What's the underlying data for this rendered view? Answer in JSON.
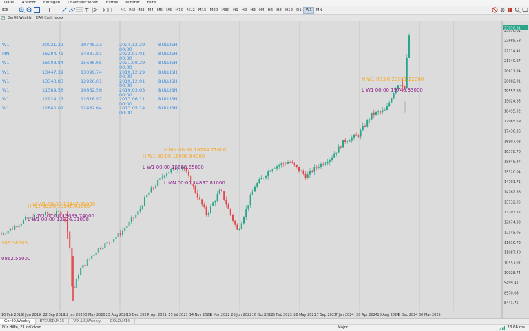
{
  "menu": [
    "Datei",
    "Ansicht",
    "Einfügen",
    "Chartfunktionen",
    "Extras",
    "Fenster",
    "Hilfe"
  ],
  "toolbar": {
    "ide_label": "IDE",
    "timeframes": [
      "M1",
      "M2",
      "M3",
      "M4",
      "M5",
      "M6",
      "M10",
      "M12",
      "M15",
      "M20",
      "M30",
      "H1",
      "H2",
      "H3",
      "H4",
      "H6",
      "H8",
      "H12",
      "D1",
      "W1",
      "MN"
    ],
    "active_timeframe": "W1"
  },
  "chart_tabs": [
    "Ger40,Weekly",
    "DAX Cash Index"
  ],
  "info_table": [
    [
      "W1",
      "20021.22",
      "19746.33",
      "2024.12.29 00:00",
      "BULLISH"
    ],
    [
      "MN",
      "16284.71",
      "14837.81",
      "2022.01.01 00:00",
      "BULLISH"
    ],
    [
      "W1",
      "16008.84",
      "15686.65",
      "2021.08.29 00:00",
      "BULLISH"
    ],
    [
      "W1",
      "13447.39",
      "13099.74",
      "2019.12.29 00:00",
      "BULLISH"
    ],
    [
      "W1",
      "13340.83",
      "12926.01",
      "2019.12.01 00:00",
      "BULLISH"
    ],
    [
      "W1",
      "11389.58",
      "10862.56",
      "2019.03.03 00:00",
      "BULLISH"
    ],
    [
      "W1",
      "12924.17",
      "12616.97",
      "2017.06.11 00:00",
      "BULLISH"
    ],
    [
      "W1",
      "12840.09",
      "12482.64",
      "2017.05.14 00:00",
      "BULLISH"
    ]
  ],
  "annotations": [
    {
      "text": "H W1 00:00 20021.22000",
      "color": "orange"
    },
    {
      "text": "L W1 00:00 19746.33000",
      "color": "purple"
    },
    {
      "text": "H MN 00:00 16284.71000",
      "color": "orange"
    },
    {
      "text": "H W1 00:00 16008.84000",
      "color": "orange"
    },
    {
      "text": "L W1 00:00 15686.65000",
      "color": "purple"
    },
    {
      "text": "L MN 00:00 14837.81000",
      "color": "purple"
    },
    {
      "text": "H W1 00:00 13447.39000",
      "color": "orange"
    },
    {
      "text": "H W1 00:00 13340.83000",
      "color": "orange"
    },
    {
      "text": "L W1 00:00 13099.74000",
      "color": "purple"
    },
    {
      "text": "L W1 00:00 12926.01000",
      "color": "purple"
    },
    {
      "text": "389.58000",
      "color": "orange"
    },
    {
      "text": "0862.56000",
      "color": "purple"
    }
  ],
  "price_axis": [
    "23076.01",
    "22689.58",
    "22114.41",
    "21140.67",
    "20611.34",
    "20082.01",
    "19553.68",
    "19024.35",
    "18495.02",
    "17965.69",
    "17436.36",
    "16907.03",
    "16378.70",
    "15849.37",
    "15320.04",
    "14791.71",
    "14262.38",
    "13732.05",
    "13203.72",
    "12674.39",
    "12145.06",
    "11616.73",
    "11087.40",
    "10557.07",
    "10028.74",
    "9499.41",
    "8970.08",
    "8441.75"
  ],
  "current_price": "23076.01",
  "time_axis": [
    "10 Feb 2019",
    "2 Jun 2019",
    "22 Sep 2019",
    "12 Jan 2020",
    "3 May 2020",
    "23 Aug 2020",
    "13 Dec 2020",
    "4 Apr 2021",
    "25 Jul 2021",
    "14 Nov 2021",
    "6 Mar 2022",
    "26 Jun 2022",
    "16 Oct 2022",
    "5 Feb 2023",
    "28 May 2023",
    "17 Sep 2023",
    "7 Jan 2024",
    "28 Apr 2024",
    "18 Aug 2024",
    "8 Dec 2024",
    "30 Mar 2025"
  ],
  "bottom_tabs": [
    "Ger40,Weekly",
    "BTCUSD,M15",
    "VIX.US,Weekly",
    "GOLD,M10"
  ],
  "status": {
    "left": "Für Hilfe, F1 drücken",
    "mid": "Major",
    "right": "28.66 ms"
  },
  "colors": {
    "up": "#2aa58a",
    "down": "#e0474c",
    "high": "#f5a623",
    "low": "#8b1e8b",
    "info": "#3e8ee0",
    "chart_bg": "#dcdcdc"
  }
}
